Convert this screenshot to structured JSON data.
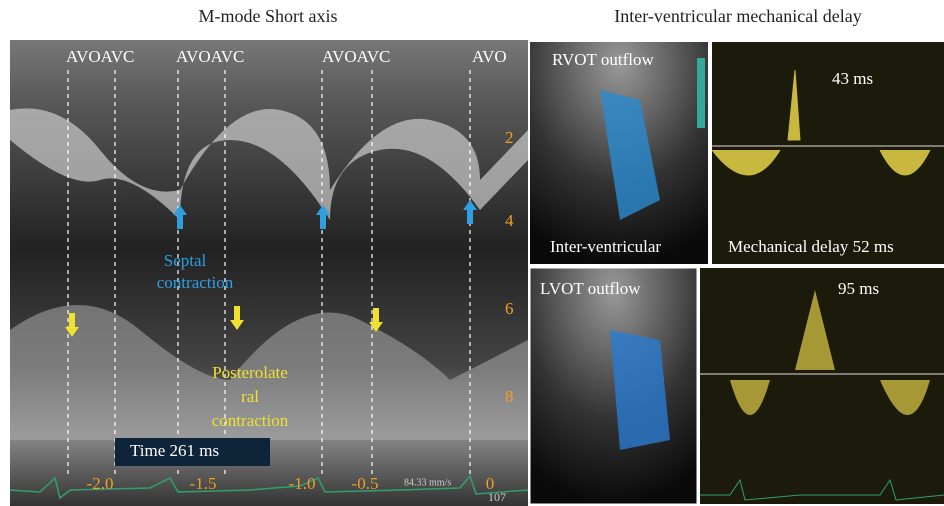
{
  "left_panel": {
    "title": "M-mode Short axis",
    "event_labels": [
      "AVOAVC",
      "AVOAVC",
      "AVOAVC",
      "AVO"
    ],
    "depth_labels": [
      "2",
      "4",
      "6",
      "8"
    ],
    "time_labels": [
      "-2.0",
      "-1.5",
      "-1.0",
      "-0.5",
      "0"
    ],
    "septal_label": [
      "Septal",
      "contraction"
    ],
    "posterior_label": [
      "Posterolate",
      "ral",
      "contraction"
    ],
    "time_box": "Time 261 ms",
    "speed": "84.33 mm/s",
    "corner": "107"
  },
  "right_panel": {
    "title": "Inter-ventricular mechanical delay",
    "rvot": {
      "label": "RVOT outflow",
      "delay": "43 ms"
    },
    "caption_left": "Inter-ventricular",
    "caption_right": "Mechanical delay 52 ms",
    "lvot": {
      "label": "LVOT outflow",
      "delay": "95 ms"
    }
  }
}
